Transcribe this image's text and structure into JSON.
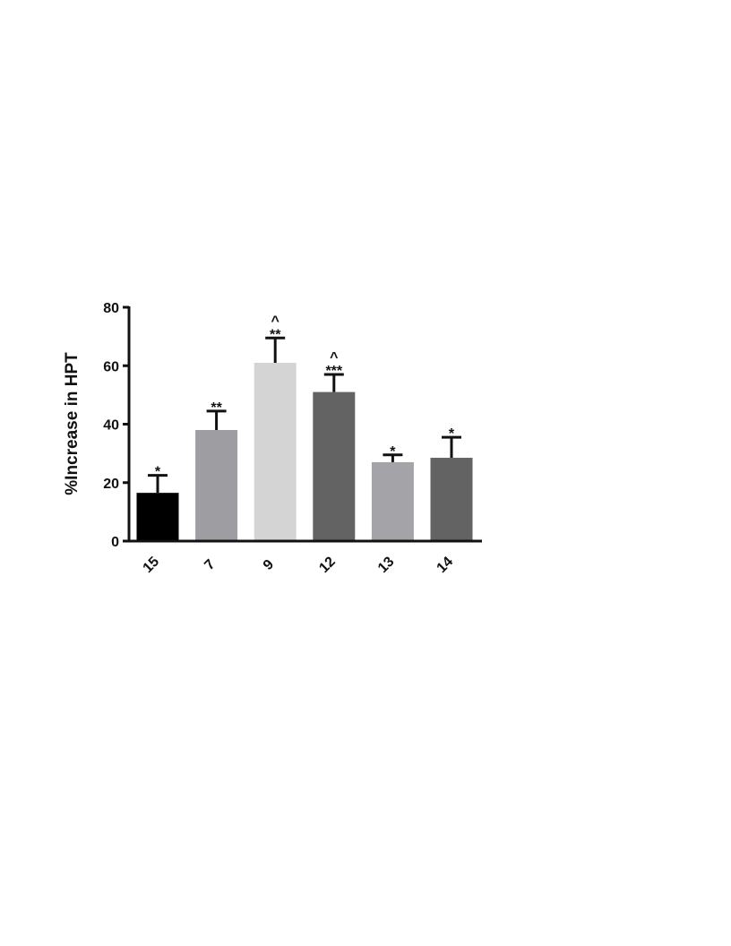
{
  "chart_data": {
    "type": "bar",
    "title": "",
    "xlabel": "",
    "ylabel": "%Increase in HPT",
    "ylim": [
      0,
      80
    ],
    "yticks": [
      0,
      20,
      40,
      60,
      80
    ],
    "grid": false,
    "categories": [
      "15",
      "7",
      "9",
      "12",
      "13",
      "14"
    ],
    "values": [
      16.5,
      38,
      61,
      51,
      27,
      28.5
    ],
    "errors": [
      6,
      6.5,
      8.5,
      6,
      2.5,
      7
    ],
    "significance": [
      {
        "marks": "*",
        "extra": ""
      },
      {
        "marks": "**",
        "extra": ""
      },
      {
        "marks": "**",
        "extra": "^"
      },
      {
        "marks": "***",
        "extra": "^"
      },
      {
        "marks": "*",
        "extra": ""
      },
      {
        "marks": "*",
        "extra": ""
      }
    ],
    "bar_colors": [
      "#000000",
      "#9e9ea2",
      "#d4d4d4",
      "#636363",
      "#a4a4a8",
      "#636363"
    ]
  }
}
